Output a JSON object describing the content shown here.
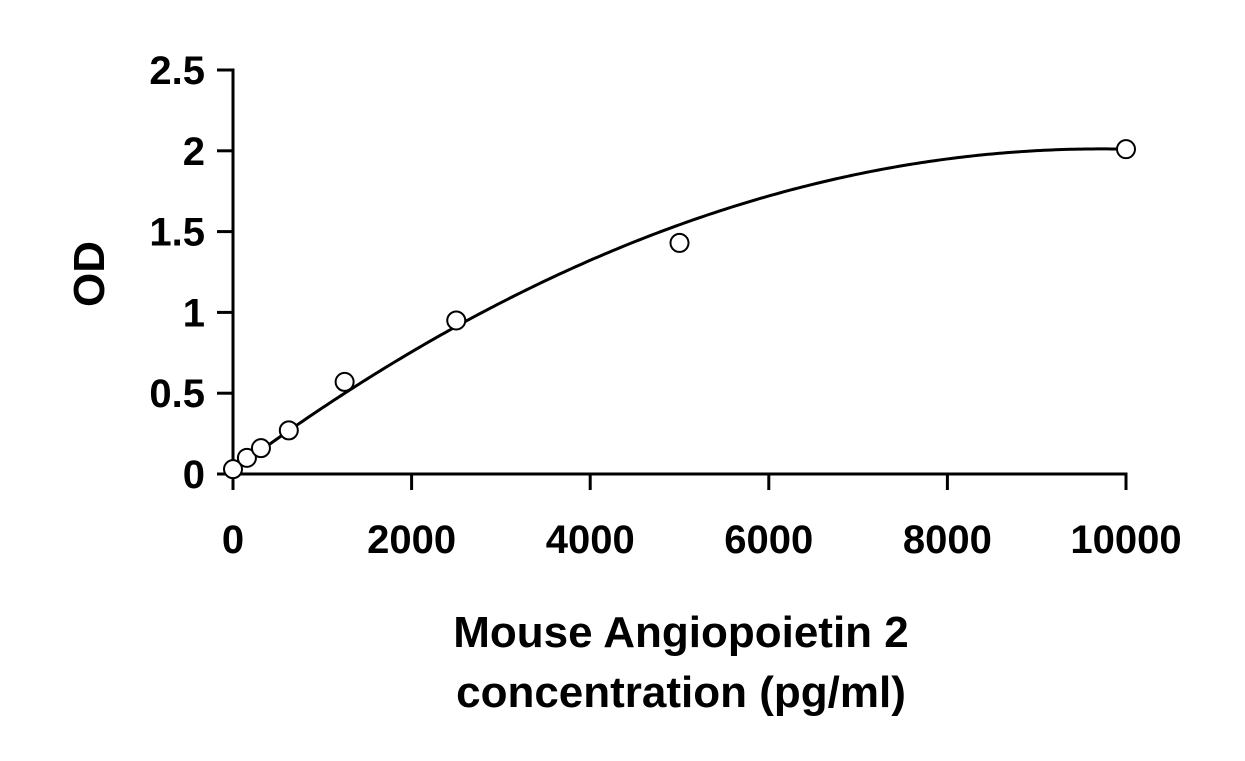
{
  "chart_data": {
    "type": "scatter",
    "title": "",
    "xlabel_lines": [
      "Mouse Angiopoietin 2",
      "concentration (pg/ml)"
    ],
    "ylabel": "OD",
    "xlim": [
      0,
      10000
    ],
    "ylim": [
      0,
      2.5
    ],
    "x_ticks": [
      0,
      2000,
      4000,
      6000,
      8000,
      10000
    ],
    "y_ticks": [
      0,
      0.5,
      1,
      1.5,
      2,
      2.5
    ],
    "x_tick_labels": [
      "0",
      "2000",
      "4000",
      "6000",
      "8000",
      "10000"
    ],
    "y_tick_labels": [
      "0",
      "0.5",
      "1",
      "1.5",
      "2",
      "2.5"
    ],
    "grid": false,
    "legend": "none",
    "series": [
      {
        "points": [
          {
            "x": 0,
            "y": 0.03
          },
          {
            "x": 156,
            "y": 0.1
          },
          {
            "x": 313,
            "y": 0.16
          },
          {
            "x": 625,
            "y": 0.27
          },
          {
            "x": 1250,
            "y": 0.57
          },
          {
            "x": 2500,
            "y": 0.95
          },
          {
            "x": 5000,
            "y": 1.43
          },
          {
            "x": 10000,
            "y": 2.01
          }
        ],
        "marker": "open-circle",
        "fit": {
          "type": "polynomial",
          "coefficients": [
            0.02,
            0.00041,
            -2.11e-08
          ]
        },
        "color": "#000000"
      }
    ]
  }
}
